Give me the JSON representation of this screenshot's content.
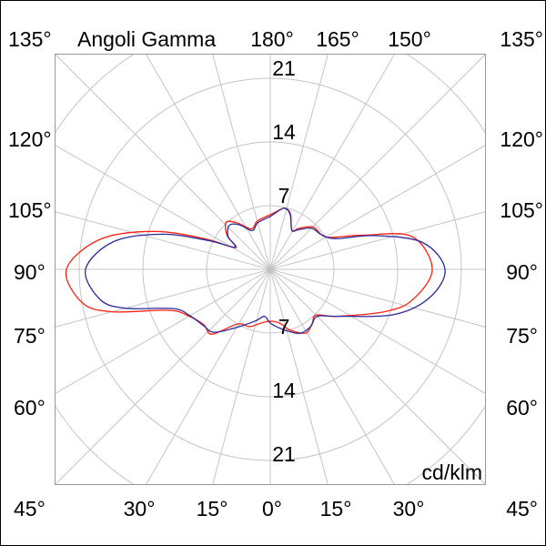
{
  "chart_data": {
    "type": "polar-line",
    "title": "Angoli Gamma",
    "unit_label": "cd/klm",
    "radial_ticks": [
      "7",
      "14",
      "21"
    ],
    "radial_range": [
      0,
      28
    ],
    "ring_values": [
      7,
      14,
      21,
      28
    ],
    "spoke_step_deg": 15,
    "grid": true,
    "angle_labels": {
      "top": [
        "135°",
        "180°",
        "165°",
        "150°",
        "135°"
      ],
      "left": [
        "120°",
        "105°",
        "90°",
        "75°",
        "60°"
      ],
      "right": [
        "120°",
        "105°",
        "90°",
        "75°",
        "60°"
      ],
      "bottom": [
        "45°",
        "30°",
        "15°",
        "0°",
        "15°",
        "30°",
        "45°"
      ]
    },
    "series": [
      {
        "color": "#ff2010",
        "points": [
          [
            -180,
            6.0
          ],
          [
            -165,
            5.5
          ],
          [
            -155,
            4.9
          ],
          [
            -145,
            6.2
          ],
          [
            -137,
            7.1
          ],
          [
            -128,
            6.0
          ],
          [
            -122,
            4.5
          ],
          [
            -115,
            8.0
          ],
          [
            -108,
            13.5
          ],
          [
            -100,
            19.0
          ],
          [
            -90,
            22.4
          ],
          [
            -80,
            21.0
          ],
          [
            -75,
            18.0
          ],
          [
            -68,
            12.0
          ],
          [
            -60,
            10.3
          ],
          [
            -50,
            9.5
          ],
          [
            -42,
            9.6
          ],
          [
            -31,
            7.0
          ],
          [
            -20,
            6.7
          ],
          [
            -10,
            6.0
          ],
          [
            0,
            5.7
          ],
          [
            10,
            6.0
          ],
          [
            18,
            7.0
          ],
          [
            29,
            8.0
          ],
          [
            38,
            7.5
          ],
          [
            45,
            7.1
          ],
          [
            55,
            9.0
          ],
          [
            70,
            13.5
          ],
          [
            78,
            16.0
          ],
          [
            90,
            17.8
          ],
          [
            103,
            16.0
          ],
          [
            110,
            11.0
          ],
          [
            118,
            7.5
          ],
          [
            124,
            6.8
          ],
          [
            135,
            6.6
          ],
          [
            145,
            5.5
          ],
          [
            151,
            4.9
          ],
          [
            160,
            6.5
          ],
          [
            167,
            6.9
          ],
          [
            175,
            6.3
          ],
          [
            180,
            6.0
          ]
        ]
      },
      {
        "color": "#2a2a9a",
        "points": [
          [
            -180,
            5.8
          ],
          [
            -165,
            5.3
          ],
          [
            -155,
            4.7
          ],
          [
            -145,
            6.0
          ],
          [
            -137,
            6.6
          ],
          [
            -128,
            5.9
          ],
          [
            -122,
            4.6
          ],
          [
            -115,
            7.5
          ],
          [
            -108,
            12.5
          ],
          [
            -100,
            17.5
          ],
          [
            -90,
            20.3
          ],
          [
            -80,
            19.0
          ],
          [
            -75,
            16.5
          ],
          [
            -68,
            11.5
          ],
          [
            -60,
            10.2
          ],
          [
            -50,
            9.6
          ],
          [
            -42,
            9.3
          ],
          [
            -31,
            7.5
          ],
          [
            -16,
            5.9
          ],
          [
            -7,
            5.2
          ],
          [
            0,
            5.9
          ],
          [
            10,
            6.6
          ],
          [
            24,
            7.7
          ],
          [
            35,
            7.7
          ],
          [
            45,
            7.3
          ],
          [
            55,
            9.0
          ],
          [
            70,
            14.5
          ],
          [
            80,
            17.8
          ],
          [
            90,
            19.2
          ],
          [
            100,
            17.0
          ],
          [
            108,
            12.0
          ],
          [
            115,
            8.0
          ],
          [
            124,
            6.8
          ],
          [
            135,
            6.4
          ],
          [
            145,
            5.3
          ],
          [
            151,
            4.9
          ],
          [
            160,
            6.4
          ],
          [
            167,
            6.9
          ],
          [
            175,
            6.2
          ],
          [
            180,
            5.8
          ]
        ]
      }
    ]
  }
}
